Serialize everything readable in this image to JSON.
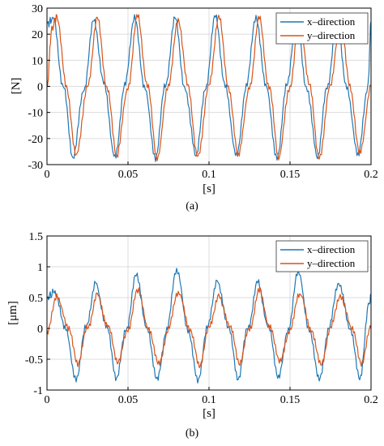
{
  "colors": {
    "x_direction": "#1f77b4",
    "y_direction": "#d9541a",
    "grid": "#dcdcdc",
    "axis": "#000000"
  },
  "panels": [
    {
      "caption": "(a)",
      "xlabel": "[s]",
      "ylabel": "[N]",
      "xticks": [
        "0",
        "0.05",
        "0.1",
        "0.15",
        "0.2"
      ],
      "yticks": [
        "30",
        "20",
        "10",
        "0",
        "-10",
        "-20",
        "-30"
      ],
      "legend": [
        "x–direction",
        "y–direction"
      ]
    },
    {
      "caption": "(b)",
      "xlabel": "[s]",
      "ylabel": "[μm]",
      "xticks": [
        "0",
        "0.05",
        "0.1",
        "0.15",
        "0.2"
      ],
      "yticks": [
        "1.5",
        "1",
        "0.5",
        "0",
        "-0.5",
        "-1"
      ],
      "legend": [
        "x–direction",
        "y–direction"
      ]
    }
  ],
  "chart_data": [
    {
      "type": "line",
      "title": "",
      "xlabel": "[s]",
      "ylabel": "[N]",
      "xlim": [
        0,
        0.2
      ],
      "ylim": [
        -30,
        30
      ],
      "grid": true,
      "legend_position": "top-right",
      "series": [
        {
          "name": "x–direction",
          "color": "#1f77b4",
          "x": [
            0,
            0.004,
            0.01,
            0.016,
            0.023,
            0.029,
            0.035,
            0.042,
            0.048,
            0.054,
            0.06,
            0.067,
            0.073,
            0.079,
            0.085,
            0.092,
            0.098,
            0.104,
            0.11,
            0.117,
            0.123,
            0.129,
            0.135,
            0.142,
            0.148,
            0.154,
            0.16,
            0.167,
            0.173,
            0.179,
            0.185,
            0.192,
            0.198,
            0.2
          ],
          "y": [
            24,
            26,
            0,
            -27,
            -1,
            26,
            1,
            -27,
            0,
            27,
            0,
            -27,
            0,
            26,
            0,
            -27,
            0,
            27,
            0,
            -27,
            0,
            27,
            0,
            -27,
            0,
            27,
            0,
            -27,
            0,
            26,
            0,
            -27,
            0,
            24
          ]
        },
        {
          "name": "y–direction",
          "color": "#d9541a",
          "x": [
            0,
            0.003,
            0.006,
            0.012,
            0.018,
            0.025,
            0.031,
            0.037,
            0.043,
            0.05,
            0.056,
            0.062,
            0.068,
            0.075,
            0.081,
            0.087,
            0.093,
            0.1,
            0.106,
            0.112,
            0.118,
            0.125,
            0.131,
            0.137,
            0.143,
            0.15,
            0.156,
            0.162,
            0.168,
            0.175,
            0.181,
            0.187,
            0.193,
            0.2
          ],
          "y": [
            0,
            22,
            27,
            0,
            -27,
            0,
            26,
            0,
            -27,
            0,
            27,
            0,
            -27,
            0,
            26,
            0,
            -27,
            0,
            27,
            0,
            -27,
            0,
            26,
            0,
            -27,
            0,
            27,
            0,
            -27,
            0,
            26,
            0,
            -26,
            0
          ]
        }
      ]
    },
    {
      "type": "line",
      "title": "",
      "xlabel": "[s]",
      "ylabel": "[μm]",
      "xlim": [
        0,
        0.2
      ],
      "ylim": [
        -1,
        1.5
      ],
      "grid": true,
      "legend_position": "top-right",
      "series": [
        {
          "name": "x–direction",
          "color": "#1f77b4",
          "x": [
            0,
            0.005,
            0.011,
            0.018,
            0.024,
            0.03,
            0.037,
            0.043,
            0.049,
            0.055,
            0.062,
            0.068,
            0.074,
            0.08,
            0.087,
            0.093,
            0.099,
            0.105,
            0.112,
            0.118,
            0.124,
            0.13,
            0.137,
            0.143,
            0.149,
            0.155,
            0.162,
            0.168,
            0.174,
            0.18,
            0.187,
            0.193,
            0.199,
            0.2
          ],
          "y": [
            0.5,
            0.6,
            0,
            -0.8,
            0,
            0.75,
            0,
            -0.8,
            0,
            0.85,
            0,
            -0.85,
            0,
            0.95,
            0,
            -0.85,
            0,
            0.8,
            0,
            -0.8,
            0,
            0.75,
            0,
            -0.8,
            0,
            0.9,
            0,
            -0.85,
            0,
            0.75,
            0,
            -0.8,
            0.4,
            0.5
          ]
        },
        {
          "name": "y–direction",
          "color": "#d9541a",
          "x": [
            0,
            0.006,
            0.013,
            0.019,
            0.025,
            0.031,
            0.038,
            0.044,
            0.05,
            0.056,
            0.063,
            0.069,
            0.075,
            0.081,
            0.088,
            0.094,
            0.1,
            0.106,
            0.113,
            0.119,
            0.125,
            0.131,
            0.138,
            0.144,
            0.15,
            0.156,
            0.163,
            0.169,
            0.175,
            0.181,
            0.188,
            0.194,
            0.2
          ],
          "y": [
            -0.1,
            0.55,
            0,
            -0.55,
            0,
            0.55,
            0,
            -0.55,
            0,
            0.6,
            0,
            -0.6,
            0,
            0.6,
            0,
            -0.6,
            0,
            0.55,
            0,
            -0.55,
            0,
            0.6,
            0,
            -0.55,
            0,
            0.55,
            0,
            -0.6,
            0,
            0.55,
            0,
            -0.55,
            0
          ]
        }
      ]
    }
  ]
}
